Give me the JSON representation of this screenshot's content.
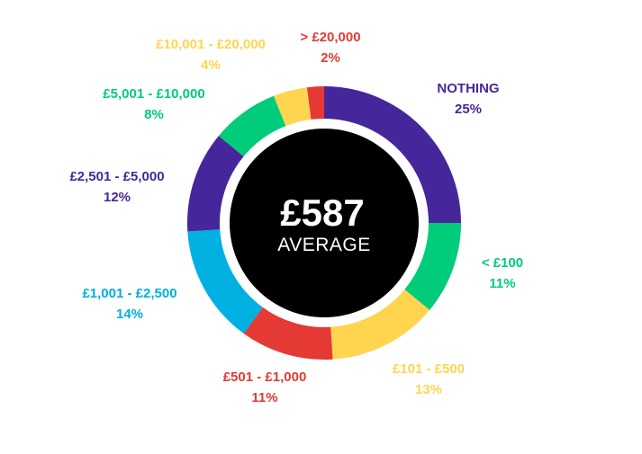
{
  "center": {
    "value": "£587",
    "caption": "AVERAGE"
  },
  "chart_data": {
    "type": "pie",
    "title": "",
    "start_angle_deg": 0,
    "direction": "clockwise",
    "slices": [
      {
        "label": "NOTHING",
        "value": 25,
        "value_text": "25%",
        "color": "#45279b"
      },
      {
        "label": "< £100",
        "value": 11,
        "value_text": "11%",
        "color": "#00cc7a"
      },
      {
        "label": "£101 - £500",
        "value": 13,
        "value_text": "13%",
        "color": "#ffd54f"
      },
      {
        "label": "£501 - £1,000",
        "value": 11,
        "value_text": "11%",
        "color": "#e53935"
      },
      {
        "label": "£1,001 - £2,500",
        "value": 14,
        "value_text": "14%",
        "color": "#00b0e0"
      },
      {
        "label": "£2,501 - £5,000",
        "value": 12,
        "value_text": "12%",
        "color": "#45279b"
      },
      {
        "label": "£5,001 - £10,000",
        "value": 8,
        "value_text": "8%",
        "color": "#00cc7a"
      },
      {
        "label": "£10,001 - £20,000",
        "value": 4,
        "value_text": "4%",
        "color": "#ffd54f"
      },
      {
        "label": "> £20,000",
        "value": 2,
        "value_text": "2%",
        "color": "#e53935"
      }
    ]
  }
}
